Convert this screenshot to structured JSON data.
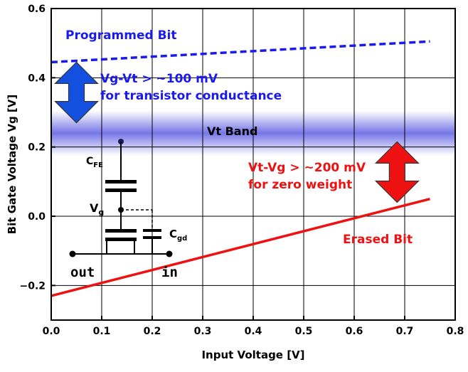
{
  "chart_data": {
    "type": "line",
    "xlabel": "Input Voltage [V]",
    "ylabel": "Bit Gate Voltage Vg [V]",
    "xlim": [
      0.0,
      0.8
    ],
    "ylim": [
      -0.3,
      0.6
    ],
    "x_ticks": [
      "0.0",
      "0.1",
      "0.2",
      "0.3",
      "0.4",
      "0.5",
      "0.6",
      "0.7",
      "0.8"
    ],
    "y_ticks": [
      "-0.2",
      "0.0",
      "0.2",
      "0.4",
      "0.6"
    ],
    "grid": true,
    "series": [
      {
        "name": "Programmed Bit",
        "style": "dashed",
        "color": "#1a1aee",
        "x": [
          0.0,
          0.75
        ],
        "y": [
          0.445,
          0.505
        ]
      },
      {
        "name": "Erased Bit",
        "style": "solid",
        "color": "#ee1111",
        "x": [
          0.0,
          0.75
        ],
        "y": [
          -0.23,
          0.05
        ]
      }
    ],
    "band": {
      "label": "Vt Band",
      "y_center": 0.24,
      "y_half_width": 0.065,
      "color": "#6e6ee6"
    },
    "annotations": [
      {
        "line1": "Vg-Vt > ~100 mV",
        "line2": "for transistor conductance",
        "color": "#1a1aee",
        "arrow_color": "#1450e0",
        "arrow_x": 0.05,
        "arrow_y": [
          0.445,
          0.27
        ]
      },
      {
        "line1": "Vt-Vg > ~200 mV",
        "line2": "for zero weight",
        "color": "#ee1111",
        "arrow_color": "#ee1111",
        "arrow_x": 0.685,
        "arrow_y": [
          0.215,
          0.04
        ]
      }
    ],
    "circuit": {
      "cfe_main": "C",
      "cfe_sub": "FE",
      "vg_main": "V",
      "vg_sub": "g",
      "cgd_main": "C",
      "cgd_sub": "gd",
      "out_label": "out",
      "in_label": "in"
    }
  }
}
